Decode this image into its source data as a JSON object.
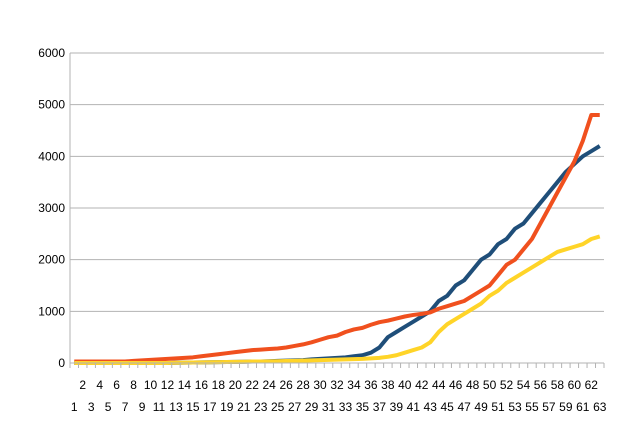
{
  "chart_data": {
    "type": "line",
    "title": "",
    "xlabel": "",
    "ylabel": "",
    "x": [
      1,
      2,
      3,
      4,
      5,
      6,
      7,
      8,
      9,
      10,
      11,
      12,
      13,
      14,
      15,
      16,
      17,
      18,
      19,
      20,
      21,
      22,
      23,
      24,
      25,
      26,
      27,
      28,
      29,
      30,
      31,
      32,
      33,
      34,
      35,
      36,
      37,
      38,
      39,
      40,
      41,
      42,
      43,
      44,
      45,
      46,
      47,
      48,
      49,
      50,
      51,
      52,
      53,
      54,
      55,
      56,
      57,
      58,
      59,
      60,
      61,
      62,
      63
    ],
    "ylim": [
      0,
      6000
    ],
    "yticks": [
      0,
      1000,
      2000,
      3000,
      4000,
      5000,
      6000
    ],
    "grid": true,
    "legend": "none",
    "series": [
      {
        "color": "#1f4e79",
        "values": [
          0,
          0,
          0,
          0,
          0,
          0,
          0,
          0,
          0,
          0,
          0,
          0,
          5,
          8,
          10,
          12,
          15,
          18,
          20,
          22,
          25,
          28,
          30,
          35,
          40,
          45,
          50,
          55,
          70,
          80,
          90,
          100,
          110,
          130,
          150,
          200,
          300,
          500,
          600,
          700,
          800,
          900,
          1000,
          1200,
          1300,
          1500,
          1600,
          1800,
          2000,
          2100,
          2300,
          2400,
          2600,
          2700,
          2900,
          3100,
          3300,
          3500,
          3700,
          3850,
          4000,
          4100,
          4200
        ]
      },
      {
        "color": "#f0501e",
        "values": [
          30,
          30,
          30,
          30,
          30,
          30,
          30,
          40,
          50,
          60,
          70,
          80,
          90,
          100,
          110,
          130,
          150,
          170,
          190,
          210,
          230,
          250,
          260,
          270,
          280,
          300,
          330,
          360,
          400,
          450,
          500,
          530,
          600,
          650,
          680,
          740,
          790,
          820,
          860,
          900,
          930,
          950,
          980,
          1050,
          1100,
          1150,
          1200,
          1300,
          1400,
          1500,
          1700,
          1900,
          2000,
          2200,
          2400,
          2700,
          3000,
          3300,
          3600,
          3900,
          4300,
          4800,
          4800
        ]
      },
      {
        "color": "#ffd428",
        "values": [
          0,
          0,
          0,
          0,
          0,
          0,
          0,
          0,
          0,
          0,
          0,
          0,
          5,
          8,
          10,
          12,
          15,
          18,
          20,
          22,
          25,
          28,
          30,
          32,
          35,
          38,
          40,
          45,
          50,
          55,
          60,
          65,
          70,
          75,
          80,
          90,
          100,
          120,
          150,
          200,
          250,
          300,
          400,
          600,
          750,
          850,
          950,
          1050,
          1150,
          1300,
          1400,
          1550,
          1650,
          1750,
          1850,
          1950,
          2050,
          2150,
          2200,
          2250,
          2300,
          2400,
          2450
        ]
      }
    ]
  }
}
